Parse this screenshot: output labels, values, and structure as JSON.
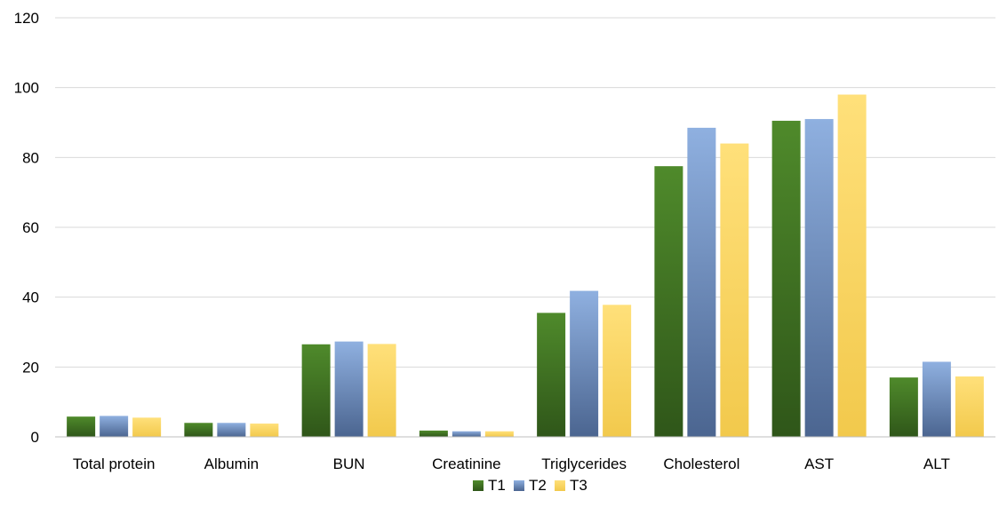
{
  "chart_data": {
    "type": "bar",
    "title": "",
    "xlabel": "",
    "ylabel": "",
    "categories": [
      "Total protein",
      "Albumin",
      "BUN",
      "Creatinine",
      "Triglycerides",
      "Cholesterol",
      "AST",
      "ALT"
    ],
    "series": [
      {
        "name": "T1",
        "values": [
          5.8,
          4.0,
          26.5,
          1.8,
          35.5,
          77.5,
          90.5,
          17.0
        ],
        "color": "#3a6b1f",
        "color_light": "#4f8a2b",
        "color_dark": "#2f5619"
      },
      {
        "name": "T2",
        "values": [
          6.0,
          4.0,
          27.3,
          1.6,
          41.8,
          88.5,
          91.0,
          21.5
        ],
        "color": "#6e8fc4",
        "color_light": "#8fb0e0",
        "color_dark": "#4b6590"
      },
      {
        "name": "T3",
        "values": [
          5.5,
          3.8,
          26.6,
          1.6,
          37.8,
          84.0,
          98.0,
          17.3
        ],
        "color": "#ffd966",
        "color_light": "#ffe07a",
        "color_dark": "#f2c94c"
      }
    ],
    "ylim": [
      0,
      120
    ],
    "yticks": [
      0,
      20,
      40,
      60,
      80,
      100,
      120
    ],
    "grid": true,
    "legend_position": "bottom"
  }
}
